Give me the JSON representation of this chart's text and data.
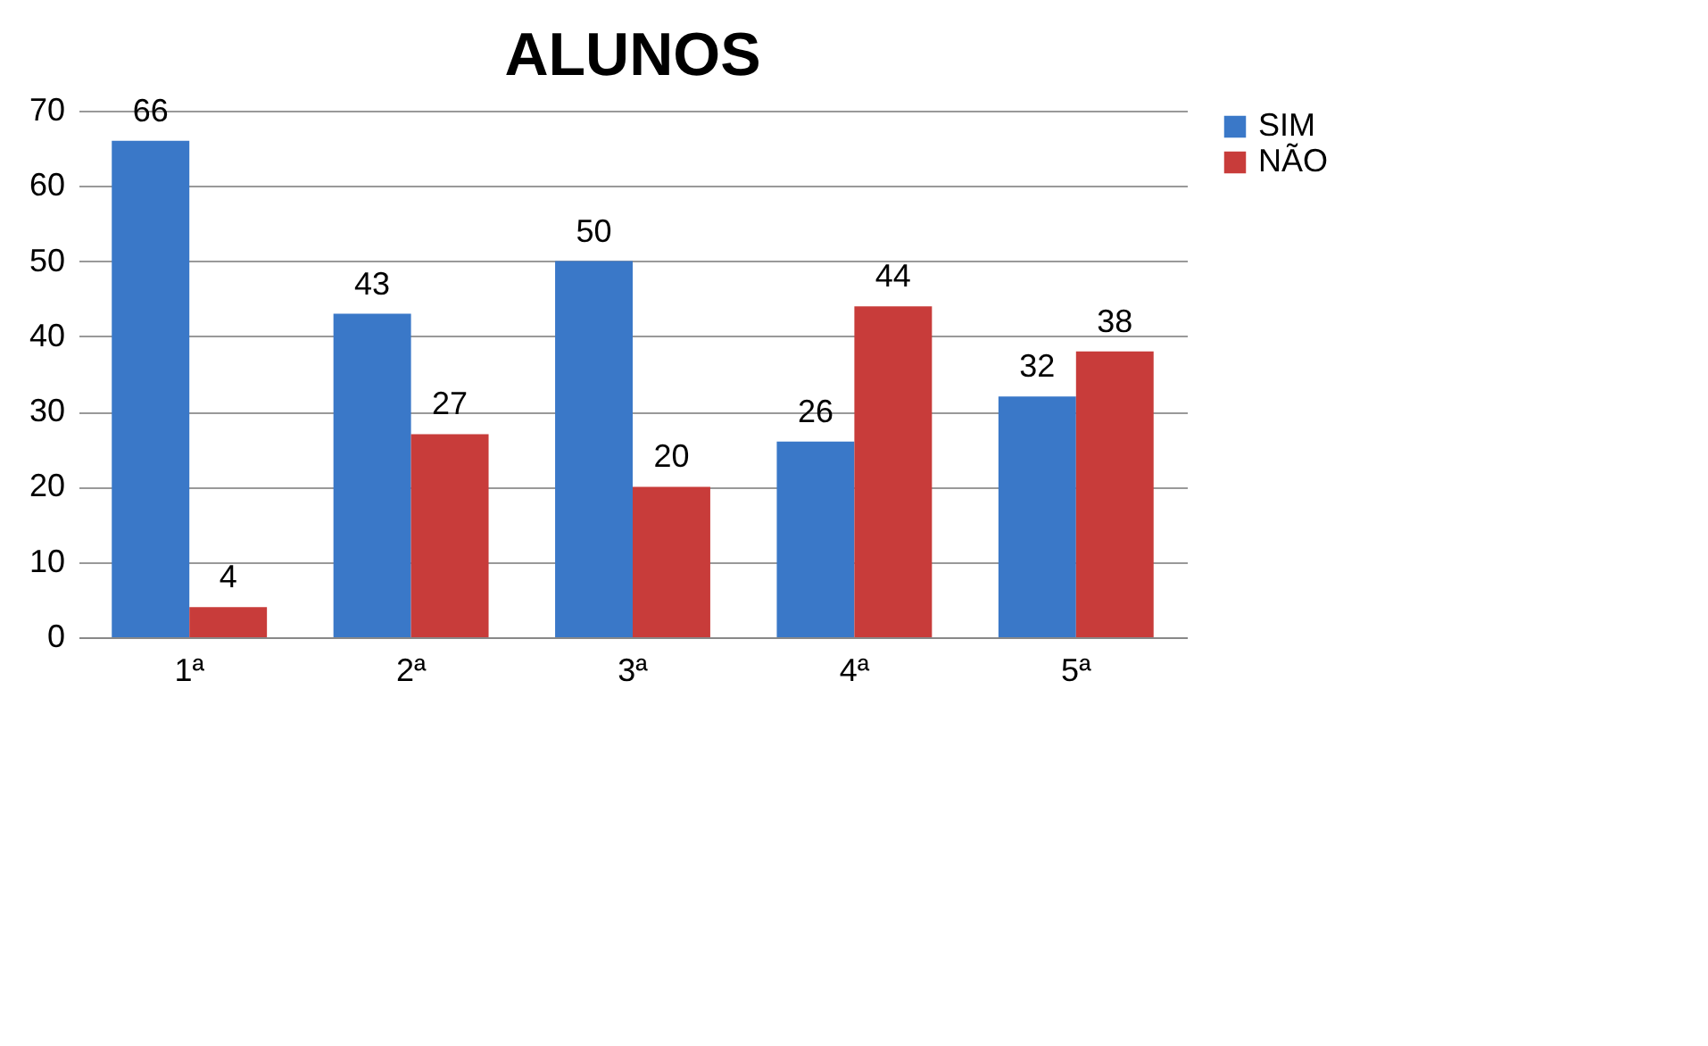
{
  "chart_data": {
    "type": "bar",
    "title": "ALUNOS",
    "categories": [
      "1ª",
      "2ª",
      "3ª",
      "4ª",
      "5ª"
    ],
    "series": [
      {
        "name": "SIM",
        "color": "#3a78c8",
        "values": [
          66,
          43,
          50,
          26,
          32
        ]
      },
      {
        "name": "NÃO",
        "color": "#c83c3a",
        "values": [
          4,
          27,
          20,
          44,
          38
        ]
      }
    ],
    "ylim": [
      0,
      70
    ],
    "yticks": [
      0,
      10,
      20,
      30,
      40,
      50,
      60,
      70
    ],
    "grid": "y",
    "legend": "right",
    "data_labels": true
  }
}
